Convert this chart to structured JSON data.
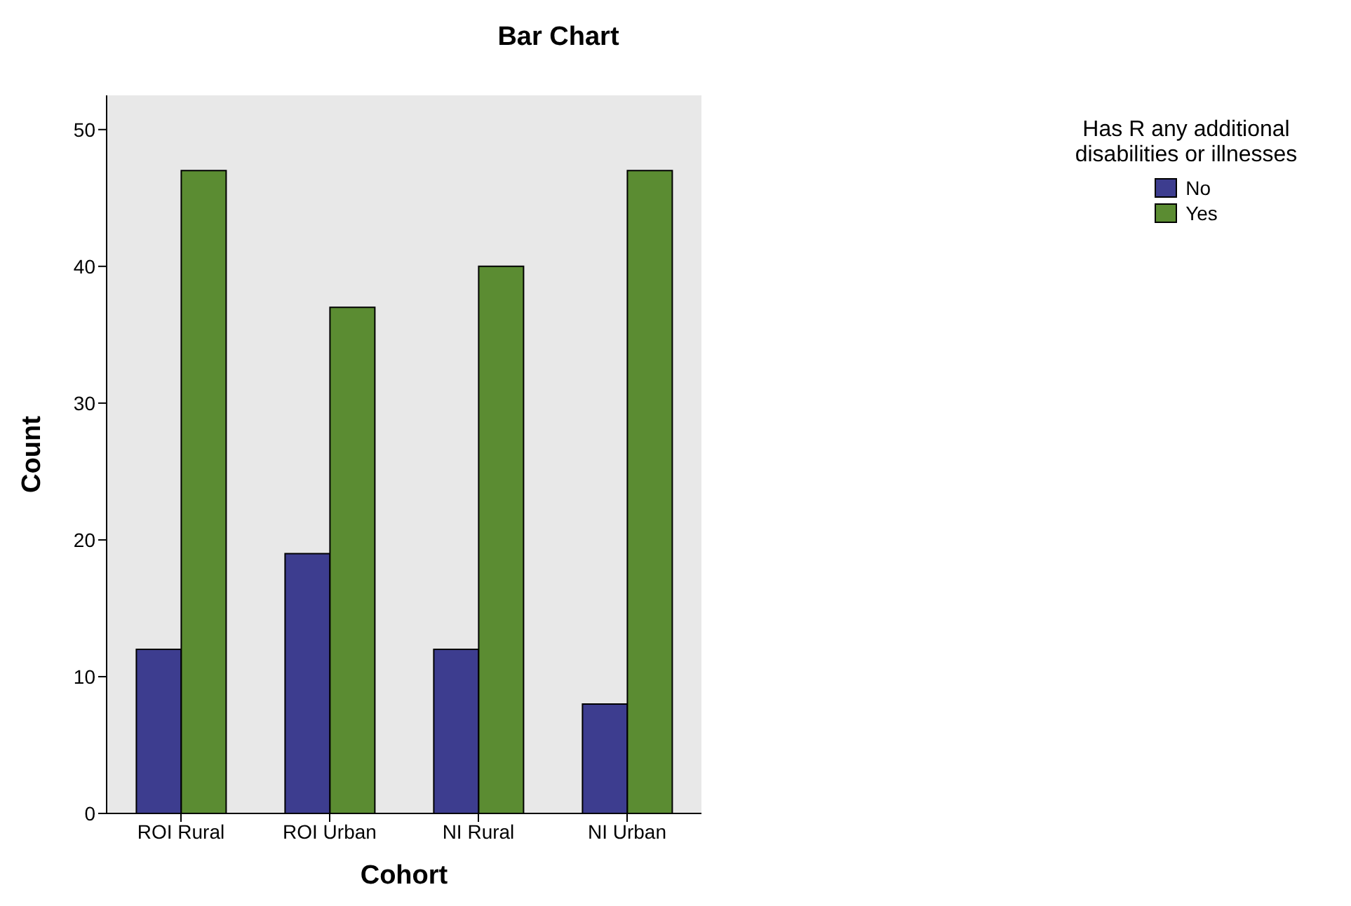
{
  "chart_data": {
    "type": "bar",
    "title": "Bar Chart",
    "xlabel": "Cohort",
    "ylabel": "Count",
    "legend_title": "Has R any additional disabilities or illnesses",
    "categories": [
      "ROI Rural",
      "ROI Urban",
      "NI Rural",
      "NI Urban"
    ],
    "series": [
      {
        "name": "No",
        "color": "#3d3d8f",
        "values": [
          12,
          19,
          12,
          8
        ]
      },
      {
        "name": "Yes",
        "color": "#5b8c32",
        "values": [
          47,
          37,
          40,
          47
        ]
      }
    ],
    "ylim": [
      0,
      52.5
    ],
    "yticks": [
      0,
      10,
      20,
      30,
      40,
      50
    ],
    "grid": false,
    "legend": "top right"
  }
}
